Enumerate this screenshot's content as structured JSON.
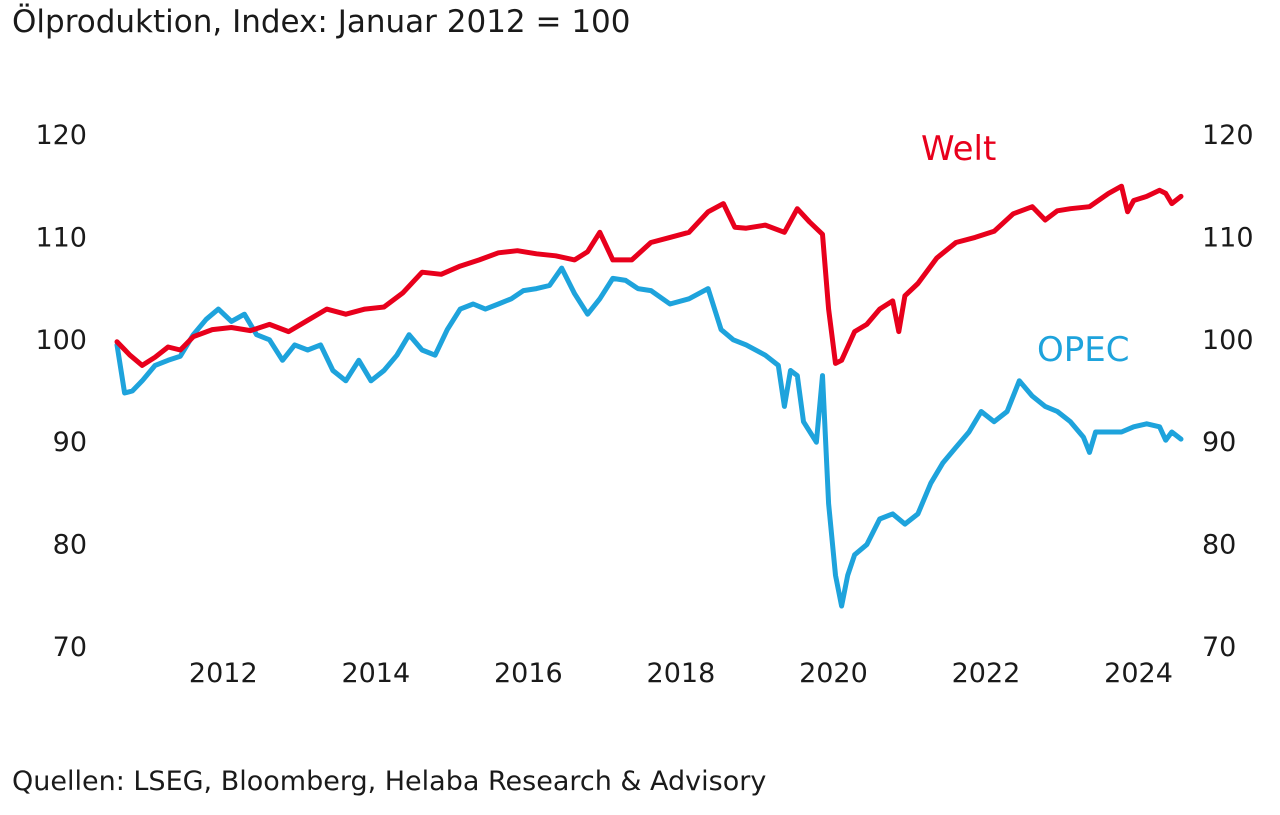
{
  "header": {
    "title": "Ölproduktion, Index: Januar 2012 = 100"
  },
  "footer": {
    "source": "Quellen: LSEG, Bloomberg, Helaba Research & Advisory"
  },
  "chart_data": {
    "type": "line",
    "title": "Ölproduktion, Index: Januar 2012 = 100",
    "xlabel": "",
    "ylabel": "",
    "xlim": [
      2011.0,
      2024.95
    ],
    "ylim": [
      70,
      120
    ],
    "y_ticks": [
      70,
      80,
      90,
      100,
      110,
      120
    ],
    "y_tick_labels": [
      "70",
      "80",
      "90",
      "100",
      "110",
      "120"
    ],
    "x_ticks": [
      2012.0,
      2014.0,
      2016.0,
      2018.0,
      2020.0,
      2022.0,
      2024.0
    ],
    "x_tick_labels": [
      "2012",
      "2014",
      "2016",
      "2018",
      "2020",
      "2022",
      "2024"
    ],
    "grid": false,
    "legend": "inline labels",
    "secondary_axis": "mirrored right axis, same scale",
    "series": [
      {
        "name": "Welt",
        "color": "#e8001c",
        "x": [
          2011.0,
          2011.17,
          2011.33,
          2011.5,
          2011.67,
          2011.83,
          2012.0,
          2012.25,
          2012.5,
          2012.75,
          2013.0,
          2013.25,
          2013.5,
          2013.75,
          2014.0,
          2014.25,
          2014.5,
          2014.75,
          2015.0,
          2015.25,
          2015.5,
          2015.75,
          2016.0,
          2016.25,
          2016.5,
          2016.75,
          2017.0,
          2017.17,
          2017.33,
          2017.5,
          2017.75,
          2018.0,
          2018.25,
          2018.5,
          2018.75,
          2018.95,
          2019.1,
          2019.25,
          2019.5,
          2019.75,
          2019.92,
          2020.08,
          2020.25,
          2020.33,
          2020.42,
          2020.5,
          2020.67,
          2020.83,
          2021.0,
          2021.17,
          2021.25,
          2021.33,
          2021.5,
          2021.75,
          2022.0,
          2022.25,
          2022.5,
          2022.75,
          2023.0,
          2023.17,
          2023.33,
          2023.5,
          2023.75,
          2024.0,
          2024.17,
          2024.25,
          2024.33,
          2024.5,
          2024.67,
          2024.75,
          2024.83,
          2024.95
        ],
        "values": [
          99.8,
          98.5,
          97.5,
          98.3,
          99.3,
          99.0,
          100.3,
          101.0,
          101.2,
          100.9,
          101.5,
          100.8,
          101.9,
          103.0,
          102.5,
          103.0,
          103.2,
          104.6,
          106.6,
          106.4,
          107.2,
          107.8,
          108.5,
          108.7,
          108.4,
          108.2,
          107.8,
          108.6,
          110.5,
          107.8,
          107.8,
          109.5,
          110.0,
          110.5,
          112.5,
          113.3,
          111.0,
          110.9,
          111.2,
          110.5,
          112.8,
          111.5,
          110.3,
          103.0,
          97.7,
          98.0,
          100.8,
          101.5,
          103.0,
          103.8,
          100.8,
          104.3,
          105.5,
          108.0,
          109.5,
          110.0,
          110.6,
          112.3,
          113.0,
          111.7,
          112.6,
          112.8,
          113.0,
          114.3,
          115.0,
          112.5,
          113.6,
          114.0,
          114.6,
          114.3,
          113.3,
          114.0
        ]
      },
      {
        "name": "OPEC",
        "color": "#1ea3dc",
        "x": [
          2011.0,
          2011.1,
          2011.2,
          2011.33,
          2011.5,
          2011.67,
          2011.83,
          2012.0,
          2012.17,
          2012.33,
          2012.5,
          2012.67,
          2012.83,
          2013.0,
          2013.17,
          2013.33,
          2013.5,
          2013.67,
          2013.83,
          2014.0,
          2014.17,
          2014.33,
          2014.5,
          2014.67,
          2014.83,
          2015.0,
          2015.17,
          2015.33,
          2015.5,
          2015.67,
          2015.83,
          2016.0,
          2016.17,
          2016.33,
          2016.5,
          2016.67,
          2016.83,
          2017.0,
          2017.17,
          2017.33,
          2017.5,
          2017.67,
          2017.83,
          2018.0,
          2018.25,
          2018.5,
          2018.75,
          2018.92,
          2019.08,
          2019.25,
          2019.5,
          2019.67,
          2019.75,
          2019.83,
          2019.92,
          2020.0,
          2020.17,
          2020.25,
          2020.33,
          2020.42,
          2020.5,
          2020.58,
          2020.67,
          2020.83,
          2021.0,
          2021.17,
          2021.33,
          2021.5,
          2021.67,
          2021.83,
          2022.0,
          2022.17,
          2022.33,
          2022.5,
          2022.67,
          2022.83,
          2023.0,
          2023.17,
          2023.33,
          2023.5,
          2023.67,
          2023.75,
          2023.83,
          2024.0,
          2024.17,
          2024.33,
          2024.5,
          2024.67,
          2024.75,
          2024.83,
          2024.95
        ],
        "values": [
          99.5,
          94.8,
          95.0,
          96.0,
          97.5,
          98.0,
          98.4,
          100.5,
          102.0,
          103.0,
          101.8,
          102.5,
          100.5,
          100.0,
          98.0,
          99.5,
          99.0,
          99.5,
          97.0,
          96.0,
          98.0,
          96.0,
          97.0,
          98.5,
          100.5,
          99.0,
          98.5,
          101.0,
          103.0,
          103.5,
          103.0,
          103.5,
          104.0,
          104.8,
          105.0,
          105.3,
          107.0,
          104.5,
          102.5,
          104.0,
          106.0,
          105.8,
          105.0,
          104.8,
          103.5,
          104.0,
          105.0,
          101.0,
          100.0,
          99.5,
          98.5,
          97.5,
          93.5,
          97.0,
          96.5,
          92.0,
          90.0,
          96.5,
          84.0,
          77.0,
          74.0,
          77.0,
          79.0,
          80.0,
          82.5,
          83.0,
          82.0,
          83.0,
          86.0,
          88.0,
          89.5,
          91.0,
          93.0,
          92.0,
          93.0,
          96.0,
          94.5,
          93.5,
          93.0,
          92.0,
          90.5,
          89.0,
          91.0,
          91.0,
          91.0,
          91.5,
          91.8,
          91.5,
          90.2,
          91.0,
          90.3
        ]
      }
    ]
  }
}
